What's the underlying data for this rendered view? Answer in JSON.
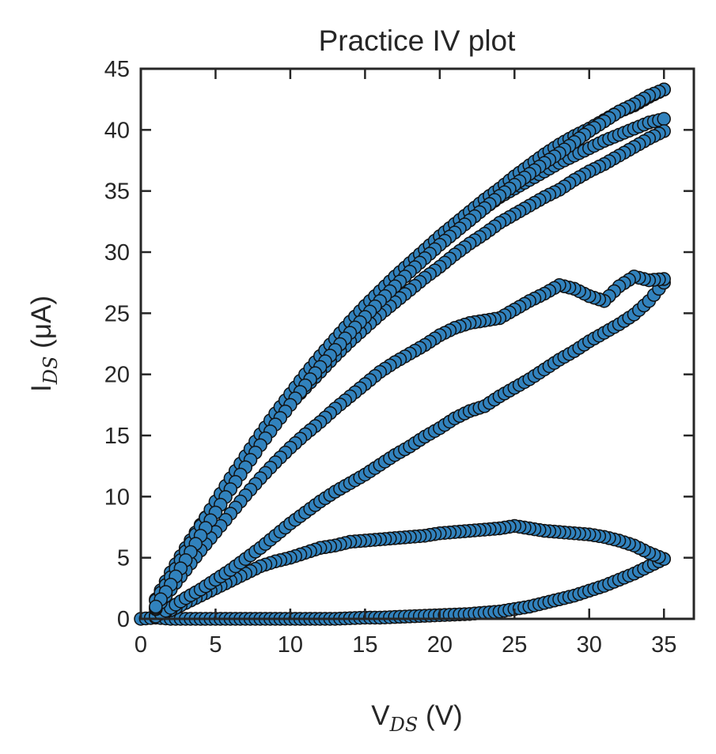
{
  "chart_data": {
    "type": "scatter",
    "title": "Practice IV plot",
    "xlabel": {
      "main": "V",
      "sub": "DS",
      "unit": " (V)"
    },
    "ylabel": {
      "main": "I",
      "sub": "DS",
      "unit": " (μA)"
    },
    "xlim": [
      0,
      37
    ],
    "ylim": [
      0,
      45
    ],
    "xticks": [
      0,
      5,
      10,
      15,
      20,
      25,
      30,
      35
    ],
    "yticks": [
      0,
      5,
      10,
      15,
      20,
      25,
      30,
      35,
      40,
      45
    ],
    "grid": false,
    "legend": "none",
    "marker_color": "#3182bd",
    "marker_edge": "#111111",
    "series": [
      {
        "points": [
          [
            0,
            0
          ],
          [
            1,
            0.1
          ],
          [
            2,
            0
          ],
          [
            3,
            0
          ],
          [
            4,
            0
          ],
          [
            5,
            0
          ],
          [
            6,
            0
          ],
          [
            7,
            0
          ],
          [
            8,
            0
          ],
          [
            9,
            0
          ],
          [
            10,
            0
          ],
          [
            11,
            0
          ],
          [
            12,
            0
          ],
          [
            13,
            0
          ],
          [
            14,
            0.05
          ],
          [
            15,
            0.1
          ],
          [
            16,
            0.1
          ],
          [
            17,
            0.15
          ],
          [
            18,
            0.2
          ],
          [
            19,
            0.25
          ],
          [
            20,
            0.3
          ],
          [
            21,
            0.35
          ],
          [
            22,
            0.4
          ],
          [
            23,
            0.5
          ],
          [
            24,
            0.6
          ],
          [
            25,
            0.8
          ],
          [
            26,
            1.0
          ],
          [
            27,
            1.3
          ],
          [
            28,
            1.6
          ],
          [
            29,
            1.9
          ],
          [
            30,
            2.3
          ],
          [
            31,
            2.7
          ],
          [
            32,
            3.2
          ],
          [
            33,
            3.7
          ],
          [
            34,
            4.3
          ],
          [
            35,
            4.9
          ]
        ]
      },
      {
        "points": [
          [
            35,
            4.9
          ],
          [
            34,
            5.4
          ],
          [
            33,
            6.0
          ],
          [
            32,
            6.4
          ],
          [
            31,
            6.7
          ],
          [
            30,
            6.9
          ],
          [
            29,
            7.0
          ],
          [
            28,
            7.1
          ],
          [
            27,
            7.2
          ],
          [
            26,
            7.4
          ],
          [
            25,
            7.6
          ],
          [
            24,
            7.4
          ],
          [
            23,
            7.3
          ],
          [
            22,
            7.2
          ],
          [
            21,
            7.1
          ],
          [
            20,
            7.0
          ],
          [
            19,
            6.8
          ],
          [
            18,
            6.7
          ],
          [
            17,
            6.6
          ],
          [
            16,
            6.5
          ],
          [
            15,
            6.4
          ],
          [
            14,
            6.3
          ],
          [
            13,
            6.0
          ],
          [
            12,
            5.8
          ],
          [
            11,
            5.4
          ],
          [
            10,
            5.0
          ],
          [
            9,
            4.7
          ],
          [
            8,
            4.3
          ],
          [
            7,
            3.7
          ],
          [
            6,
            3.1
          ],
          [
            5,
            2.5
          ],
          [
            4,
            1.9
          ],
          [
            3,
            1.3
          ],
          [
            2,
            0.7
          ],
          [
            1,
            0.3
          ]
        ]
      },
      {
        "points": [
          [
            1,
            0.2
          ],
          [
            2,
            0.9
          ],
          [
            3,
            1.7
          ],
          [
            4,
            2.4
          ],
          [
            5,
            3.2
          ],
          [
            6,
            4.0
          ],
          [
            7,
            4.9
          ],
          [
            8,
            5.8
          ],
          [
            9,
            6.8
          ],
          [
            10,
            7.8
          ],
          [
            11,
            8.7
          ],
          [
            12,
            9.6
          ],
          [
            13,
            10.4
          ],
          [
            14,
            11.1
          ],
          [
            15,
            11.8
          ],
          [
            16,
            12.6
          ],
          [
            17,
            13.4
          ],
          [
            18,
            14.1
          ],
          [
            19,
            14.9
          ],
          [
            20,
            15.6
          ],
          [
            21,
            16.4
          ],
          [
            22,
            17.0
          ],
          [
            23,
            17.4
          ],
          [
            24,
            18.2
          ],
          [
            25,
            18.9
          ],
          [
            26,
            19.6
          ],
          [
            27,
            20.4
          ],
          [
            28,
            21.2
          ],
          [
            29,
            21.9
          ],
          [
            30,
            22.7
          ],
          [
            31,
            23.4
          ],
          [
            32,
            24.1
          ],
          [
            33,
            24.9
          ],
          [
            34,
            26.0
          ],
          [
            35,
            27.5
          ]
        ]
      },
      {
        "points": [
          [
            35,
            27.8
          ],
          [
            34,
            27.7
          ],
          [
            33,
            28.0
          ],
          [
            32,
            27.2
          ],
          [
            31,
            26.0
          ],
          [
            30,
            26.4
          ],
          [
            29,
            27.0
          ],
          [
            28,
            27.3
          ],
          [
            27,
            26.6
          ],
          [
            26,
            26.0
          ],
          [
            25,
            25.3
          ],
          [
            24,
            24.6
          ],
          [
            23,
            24.4
          ],
          [
            22,
            24.2
          ],
          [
            21,
            23.8
          ],
          [
            20,
            23.2
          ],
          [
            19,
            22.4
          ],
          [
            18,
            21.7
          ],
          [
            17,
            21.0
          ],
          [
            16,
            20.2
          ],
          [
            15,
            19.2
          ],
          [
            14,
            18.2
          ],
          [
            13,
            17.2
          ],
          [
            12,
            16.1
          ],
          [
            11,
            15.1
          ],
          [
            10,
            14.0
          ],
          [
            9,
            12.8
          ],
          [
            8,
            11.5
          ],
          [
            7,
            10.1
          ],
          [
            6,
            8.6
          ],
          [
            5,
            7.1
          ],
          [
            4,
            5.6
          ],
          [
            3,
            4.0
          ],
          [
            2,
            2.4
          ],
          [
            1,
            0.8
          ]
        ]
      },
      {
        "points": [
          [
            1,
            0.9
          ],
          [
            2,
            3.1
          ],
          [
            3,
            5.2
          ],
          [
            4,
            7.3
          ],
          [
            5,
            9.3
          ],
          [
            6,
            11.1
          ],
          [
            7,
            12.9
          ],
          [
            8,
            14.6
          ],
          [
            9,
            16.3
          ],
          [
            10,
            18.0
          ],
          [
            11,
            19.6
          ],
          [
            12,
            21.1
          ],
          [
            13,
            22.5
          ],
          [
            14,
            23.9
          ],
          [
            15,
            25.2
          ],
          [
            16,
            26.4
          ],
          [
            17,
            27.5
          ],
          [
            18,
            28.6
          ],
          [
            19,
            29.7
          ],
          [
            20,
            30.8
          ],
          [
            21,
            31.8
          ],
          [
            22,
            32.6
          ],
          [
            23,
            33.6
          ],
          [
            24,
            34.5
          ],
          [
            25,
            35.2
          ],
          [
            26,
            35.9
          ],
          [
            27,
            36.6
          ],
          [
            28,
            37.3
          ],
          [
            29,
            37.9
          ],
          [
            30,
            38.5
          ],
          [
            31,
            39.1
          ],
          [
            32,
            39.6
          ],
          [
            33,
            40.1
          ],
          [
            34,
            40.6
          ],
          [
            35,
            40.9
          ]
        ]
      },
      {
        "points": [
          [
            35,
            39.9
          ],
          [
            34,
            39.3
          ],
          [
            33,
            38.6
          ],
          [
            32,
            37.9
          ],
          [
            31,
            37.2
          ],
          [
            30,
            36.6
          ],
          [
            29,
            35.9
          ],
          [
            28,
            35.1
          ],
          [
            27,
            34.5
          ],
          [
            26,
            33.8
          ],
          [
            25,
            33.1
          ],
          [
            24,
            32.4
          ],
          [
            23,
            31.5
          ],
          [
            22,
            30.7
          ],
          [
            21,
            29.8
          ],
          [
            20,
            28.8
          ],
          [
            19,
            27.9
          ],
          [
            18,
            26.9
          ],
          [
            17,
            25.9
          ],
          [
            16,
            24.9
          ],
          [
            15,
            23.8
          ],
          [
            14,
            22.7
          ],
          [
            13,
            21.5
          ],
          [
            12,
            20.2
          ],
          [
            11,
            18.9
          ],
          [
            10,
            17.6
          ],
          [
            9,
            16.1
          ],
          [
            8,
            14.6
          ],
          [
            7,
            13.0
          ],
          [
            6,
            11.3
          ],
          [
            5,
            9.5
          ],
          [
            4,
            7.7
          ],
          [
            3,
            5.8
          ],
          [
            2,
            3.8
          ],
          [
            1,
            1.6
          ]
        ]
      },
      {
        "points": [
          [
            1,
            1.5
          ],
          [
            2,
            3.4
          ],
          [
            3,
            5.5
          ],
          [
            4,
            7.6
          ],
          [
            5,
            9.6
          ],
          [
            6,
            11.5
          ],
          [
            7,
            13.3
          ],
          [
            8,
            15.1
          ],
          [
            9,
            16.8
          ],
          [
            10,
            18.4
          ],
          [
            11,
            20.0
          ],
          [
            12,
            21.5
          ],
          [
            13,
            22.9
          ],
          [
            14,
            24.3
          ],
          [
            15,
            25.6
          ],
          [
            16,
            26.8
          ],
          [
            17,
            28.0
          ],
          [
            18,
            29.1
          ],
          [
            19,
            30.2
          ],
          [
            20,
            31.3
          ],
          [
            21,
            32.3
          ],
          [
            22,
            33.3
          ],
          [
            23,
            34.3
          ],
          [
            24,
            35.2
          ],
          [
            25,
            36.2
          ],
          [
            26,
            37.1
          ],
          [
            27,
            38.0
          ],
          [
            28,
            38.8
          ],
          [
            29,
            39.5
          ],
          [
            30,
            40.1
          ],
          [
            31,
            40.8
          ],
          [
            32,
            41.5
          ],
          [
            33,
            42.0
          ],
          [
            34,
            42.7
          ],
          [
            35,
            43.3
          ]
        ]
      },
      {
        "points": [
          [
            35,
            43.3
          ],
          [
            34,
            42.8
          ],
          [
            33,
            42.1
          ],
          [
            32,
            41.5
          ],
          [
            31,
            40.7
          ],
          [
            30,
            39.9
          ],
          [
            29,
            39.0
          ],
          [
            28,
            38.1
          ],
          [
            27,
            37.3
          ],
          [
            26,
            36.4
          ],
          [
            25,
            35.5
          ],
          [
            24,
            34.6
          ],
          [
            23,
            33.6
          ],
          [
            22,
            32.6
          ],
          [
            21,
            31.6
          ],
          [
            20,
            30.6
          ],
          [
            19,
            29.5
          ],
          [
            18,
            28.4
          ],
          [
            17,
            27.2
          ],
          [
            16,
            26.0
          ],
          [
            15,
            24.7
          ],
          [
            14,
            23.4
          ],
          [
            13,
            22.0
          ],
          [
            12,
            20.6
          ],
          [
            11,
            19.1
          ],
          [
            10,
            17.5
          ],
          [
            9,
            15.9
          ],
          [
            8,
            14.2
          ],
          [
            7,
            12.4
          ],
          [
            6,
            10.6
          ],
          [
            5,
            8.7
          ],
          [
            4,
            6.8
          ],
          [
            3,
            4.8
          ],
          [
            2,
            2.8
          ],
          [
            1,
            1.0
          ]
        ]
      }
    ]
  }
}
